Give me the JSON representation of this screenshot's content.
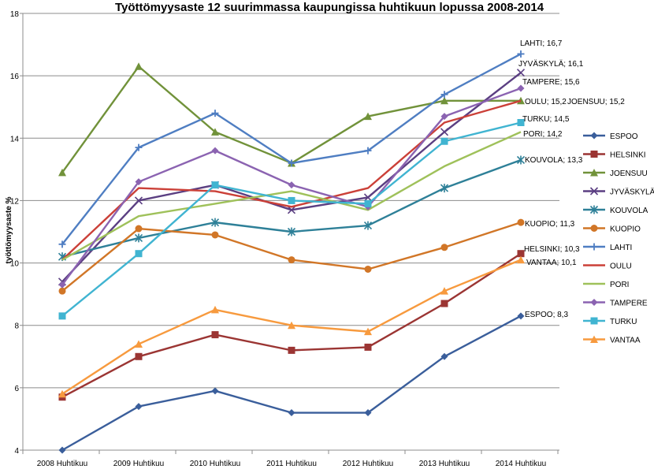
{
  "chart_data": {
    "type": "line",
    "title": "Työttömyysaste 12 suurimmassa kaupungissa huhtikuun lopussa 2008-2014",
    "ylabel": "työttömyysaste %",
    "xlabel": "",
    "categories": [
      "2008 Huhtikuu",
      "2009 Huhtikuu",
      "2010 Huhtikuu",
      "2011 Huhtikuu",
      "2012 Huhtikuu",
      "2013 Huhtikuu",
      "2014 Huhtikuu"
    ],
    "ylim": [
      4,
      18
    ],
    "yticks": [
      "4",
      "6",
      "8",
      "10",
      "12",
      "14",
      "16",
      "18"
    ],
    "grid": true,
    "legend_position": "right",
    "series": [
      {
        "name": "ESPOO",
        "color": "#3a5e9b",
        "marker": "diamond",
        "values": [
          4.0,
          5.4,
          5.9,
          5.2,
          5.2,
          7.0,
          8.3
        ],
        "end_label": "ESPOO; 8,3"
      },
      {
        "name": "HELSINKI",
        "color": "#9b3533",
        "marker": "square",
        "values": [
          5.7,
          7.0,
          7.7,
          7.2,
          7.3,
          8.7,
          10.3
        ],
        "end_label": "HELSINKI; 10,3"
      },
      {
        "name": "JOENSUU",
        "color": "#71923a",
        "marker": "triangle",
        "values": [
          12.9,
          16.3,
          14.2,
          13.2,
          14.7,
          15.2,
          15.2
        ],
        "end_label": "JOENSUU; 15,2"
      },
      {
        "name": "JYVÄSKYLÄ",
        "color": "#5b3f82",
        "marker": "x",
        "values": [
          9.4,
          12.0,
          12.5,
          11.7,
          12.1,
          14.2,
          16.1
        ],
        "end_label": "JYVÄSKYLÄ; 16,1"
      },
      {
        "name": "KOUVOLA",
        "color": "#2e8098",
        "marker": "star",
        "values": [
          10.2,
          10.8,
          11.3,
          11.0,
          11.2,
          12.4,
          13.3
        ],
        "end_label": "KOUVOLA; 13,3"
      },
      {
        "name": "KUOPIO",
        "color": "#d17627",
        "marker": "circle",
        "values": [
          9.1,
          11.1,
          10.9,
          10.1,
          9.8,
          10.5,
          11.3
        ],
        "end_label": "KUOPIO; 11,3"
      },
      {
        "name": "LAHTI",
        "color": "#4f7ec2",
        "marker": "plus",
        "values": [
          10.6,
          13.7,
          14.8,
          13.2,
          13.6,
          15.4,
          16.7
        ],
        "end_label": "LAHTI; 16,7"
      },
      {
        "name": "OULU",
        "color": "#cb4038",
        "marker": "none",
        "values": [
          10.1,
          12.4,
          12.3,
          11.8,
          12.4,
          14.5,
          15.2
        ],
        "end_label": "OULU; 15,2"
      },
      {
        "name": "PORI",
        "color": "#9fc15a",
        "marker": "none",
        "values": [
          10.1,
          11.5,
          11.9,
          12.3,
          11.7,
          13.1,
          14.2
        ],
        "end_label": "PORI; 14,2"
      },
      {
        "name": "TAMPERE",
        "color": "#8b63b1",
        "marker": "diamond",
        "values": [
          9.3,
          12.6,
          13.6,
          12.5,
          11.8,
          14.7,
          15.6
        ],
        "end_label": "TAMPERE; 15,6"
      },
      {
        "name": "TURKU",
        "color": "#40b4d1",
        "marker": "square",
        "values": [
          8.3,
          10.3,
          12.5,
          12.0,
          11.9,
          13.9,
          14.5
        ],
        "end_label": "TURKU; 14,5"
      },
      {
        "name": "VANTAA",
        "color": "#f79a3e",
        "marker": "triangle",
        "values": [
          5.8,
          7.4,
          8.5,
          8.0,
          7.8,
          9.1,
          10.1
        ],
        "end_label": "VANTAA; 10,1"
      }
    ]
  }
}
